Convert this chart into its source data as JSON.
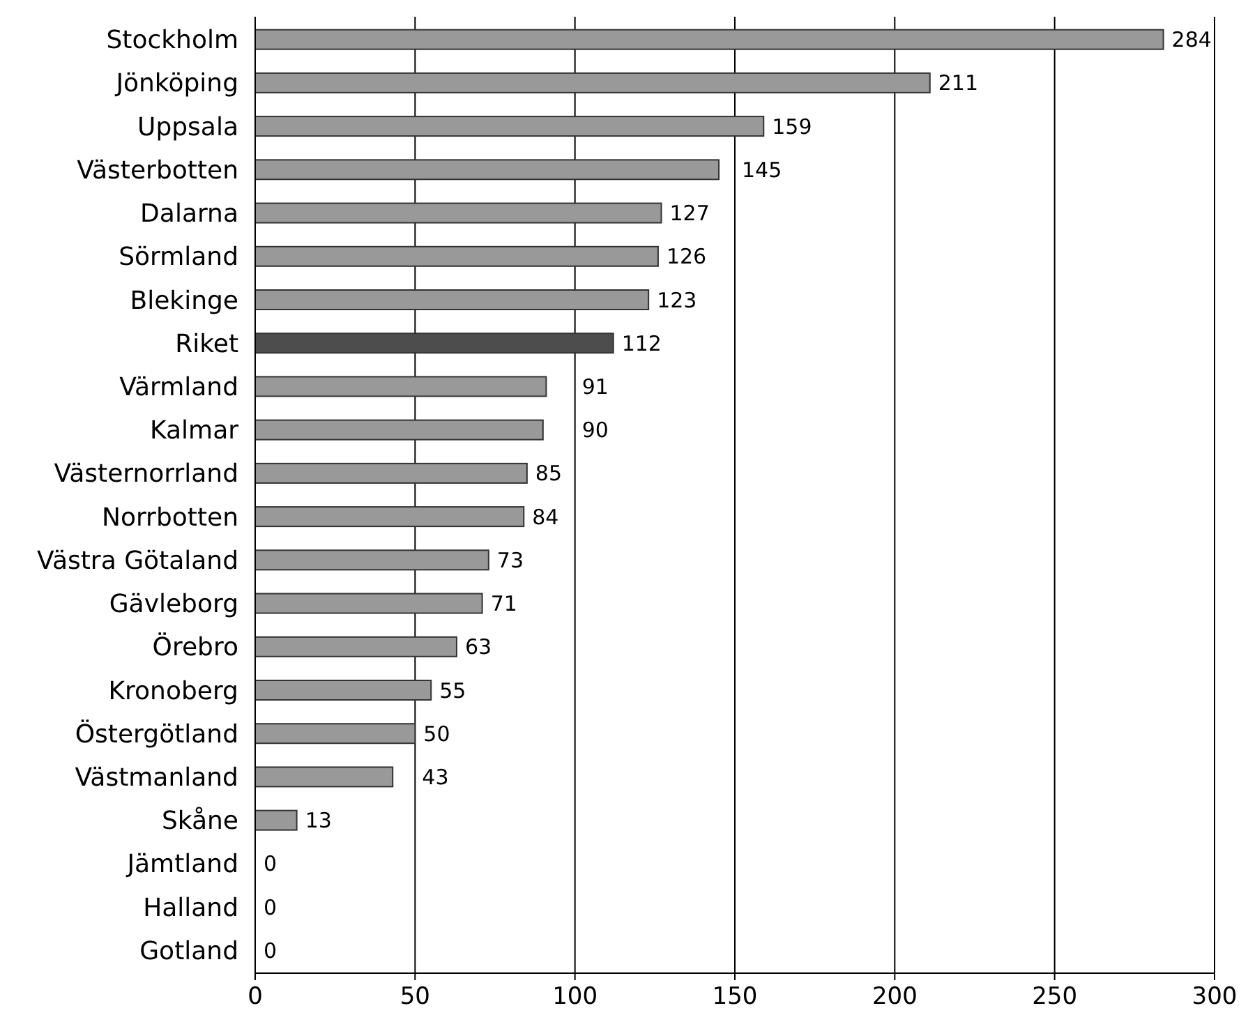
{
  "chart_data": {
    "type": "bar",
    "orientation": "horizontal",
    "categories": [
      "Stockholm",
      "Jönköping",
      "Uppsala",
      "Västerbotten",
      "Dalarna",
      "Sörmland",
      "Blekinge",
      "Riket",
      "Värmland",
      "Kalmar",
      "Västernorrland",
      "Norrbotten",
      "Västra Götaland",
      "Gävleborg",
      "Örebro",
      "Kronoberg",
      "Östergötland",
      "Västmanland",
      "Skåne",
      "Jämtland",
      "Halland",
      "Gotland"
    ],
    "values": [
      284,
      211,
      159,
      145,
      127,
      126,
      123,
      112,
      91,
      90,
      85,
      84,
      73,
      71,
      63,
      55,
      50,
      43,
      13,
      0,
      0,
      0
    ],
    "colors": [
      "#999999",
      "#999999",
      "#999999",
      "#999999",
      "#999999",
      "#999999",
      "#999999",
      "#4d4d4d",
      "#999999",
      "#999999",
      "#999999",
      "#999999",
      "#999999",
      "#999999",
      "#999999",
      "#999999",
      "#999999",
      "#999999",
      "#999999",
      "#999999",
      "#999999",
      "#999999"
    ],
    "xlim": [
      0,
      300
    ],
    "xticks": [
      0,
      50,
      100,
      150,
      200,
      250,
      300
    ],
    "grid": "x",
    "data_labels": true
  }
}
